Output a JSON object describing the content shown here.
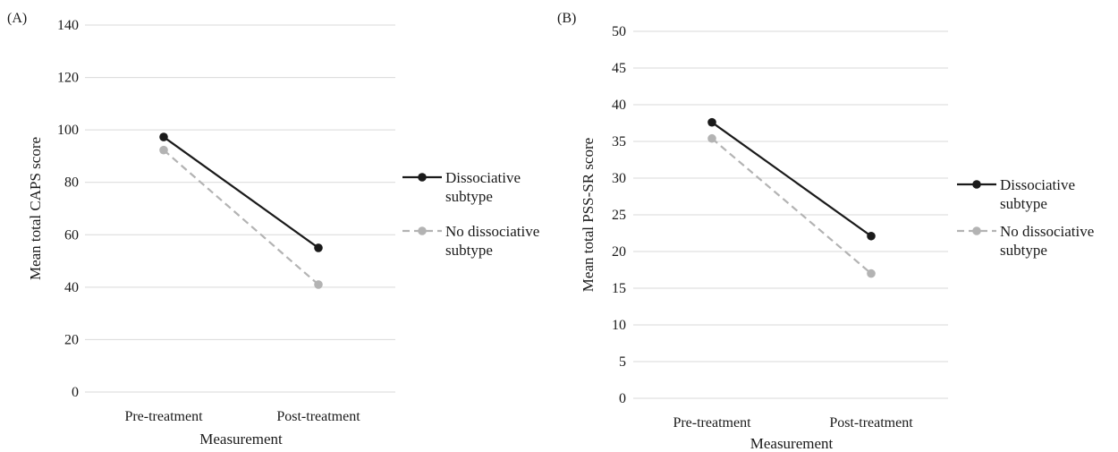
{
  "chart_data": [
    {
      "type": "line",
      "panel_label": "(A)",
      "categories": [
        "Pre-treatment",
        "Post-treatment"
      ],
      "series": [
        {
          "name": "Dissociative subtype",
          "values": [
            97.3,
            55.0
          ],
          "color": "#1a1a1a",
          "dash": "solid"
        },
        {
          "name": "No dissociative subtype",
          "values": [
            92.3,
            41.0
          ],
          "color": "#b3b3b3",
          "dash": "dashed"
        }
      ],
      "xlabel": "Measurement",
      "ylabel": "Mean total CAPS score",
      "ylim": [
        0,
        140
      ],
      "yticks": [
        0,
        20,
        40,
        60,
        80,
        100,
        120,
        140
      ],
      "grid": true,
      "legend_position": "right"
    },
    {
      "type": "line",
      "panel_label": "(B)",
      "categories": [
        "Pre-treatment",
        "Post-treatment"
      ],
      "series": [
        {
          "name": "Dissociative subtype",
          "values": [
            37.6,
            22.1
          ],
          "color": "#1a1a1a",
          "dash": "solid"
        },
        {
          "name": "No dissociative subtype",
          "values": [
            35.4,
            17.0
          ],
          "color": "#b3b3b3",
          "dash": "dashed"
        }
      ],
      "xlabel": "Measurement",
      "ylabel": "Mean total PSS-SR score",
      "ylim": [
        0,
        50
      ],
      "yticks": [
        0,
        5,
        10,
        15,
        20,
        25,
        30,
        35,
        40,
        45,
        50
      ],
      "grid": true,
      "legend_position": "right"
    }
  ],
  "legend": [
    {
      "line1": "Dissociative",
      "line2": "subtype"
    },
    {
      "line1": "No dissociative",
      "line2": "subtype"
    }
  ]
}
